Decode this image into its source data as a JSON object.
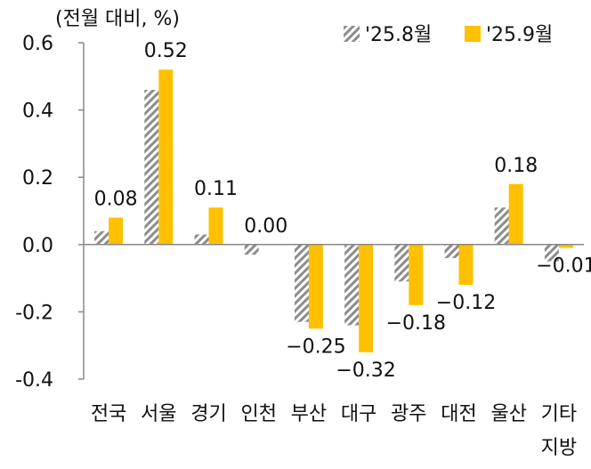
{
  "chart_data": {
    "type": "bar",
    "unit_label": "(전월 대비, %)",
    "categories": [
      "전국",
      "서울",
      "경기",
      "인천",
      "부산",
      "대구",
      "광주",
      "대전",
      "울산",
      "기타"
    ],
    "category_sublabels": [
      "",
      "",
      "",
      "",
      "",
      "",
      "",
      "",
      "",
      "지방"
    ],
    "series": [
      {
        "name": "'25.8월",
        "style": "hatched-gray",
        "values": [
          0.04,
          0.46,
          0.03,
          -0.03,
          -0.23,
          -0.24,
          -0.11,
          -0.04,
          0.11,
          -0.05
        ]
      },
      {
        "name": "'25.9월",
        "color": "#FFC000",
        "values": [
          0.08,
          0.52,
          0.11,
          0.0,
          -0.25,
          -0.32,
          -0.18,
          -0.12,
          0.18,
          -0.01
        ],
        "data_labels": [
          "0.08",
          "0.52",
          "0.11",
          "0.00",
          "−0.25",
          "−0.32",
          "−0.18",
          "−0.12",
          "0.18",
          "−0.01"
        ]
      }
    ],
    "ylim": [
      -0.4,
      0.6
    ],
    "yticks": [
      "0.6",
      "0.4",
      "0.2",
      "0.0",
      "-0.2",
      "-0.4"
    ],
    "ytick_values": [
      0.6,
      0.4,
      0.2,
      0.0,
      -0.2,
      -0.4
    ],
    "grid": false,
    "legend_position": "top-right",
    "colors": {
      "series2": "#FFC000",
      "hatch": "#8c8c8c",
      "axis": "#888888"
    }
  }
}
